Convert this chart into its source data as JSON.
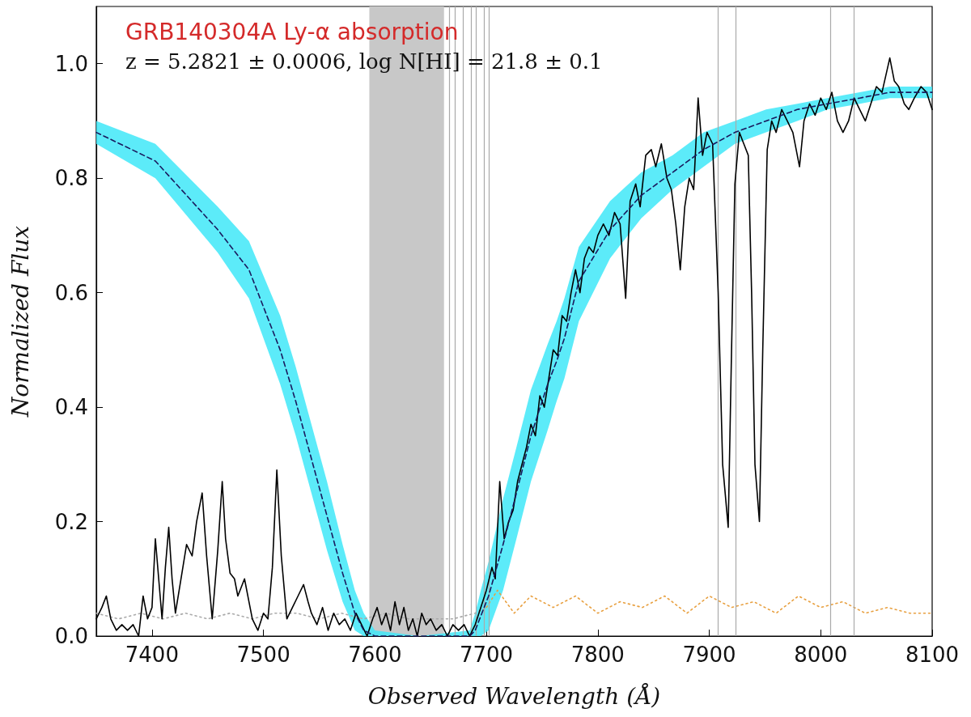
{
  "chart_data": {
    "type": "line",
    "title": "GRB140304A Ly-α absorption",
    "subtitle": "z = 5.2821 ± 0.0006, log N[HI] = 21.8 ± 0.1",
    "xlabel": "Observed Wavelength (Å)",
    "ylabel": "Normalized Flux",
    "xlim": [
      7350,
      8100
    ],
    "xticks": [
      7400,
      7500,
      7600,
      7700,
      7800,
      7900,
      8000,
      8100
    ],
    "ylim": [
      0,
      1.1
    ],
    "yticks": [
      {
        "value": 0,
        "label": "0.0"
      },
      0.2,
      0.4,
      0.6,
      0.8,
      {
        "value": 1,
        "label": "1.0"
      }
    ],
    "grid": false,
    "marker": "none",
    "bands": [
      {
        "axis": "x",
        "from": 7595,
        "to": 7662,
        "color": "#c8c8c8"
      }
    ],
    "ref_lines": [
      {
        "axis": "x",
        "value": 7667,
        "color": "#aaaaaa"
      },
      {
        "axis": "x",
        "value": 7672,
        "color": "#aaaaaa"
      },
      {
        "axis": "x",
        "value": 7679,
        "color": "#aaaaaa"
      },
      {
        "axis": "x",
        "value": 7686,
        "color": "#aaaaaa"
      },
      {
        "axis": "x",
        "value": 7691,
        "color": "#aaaaaa"
      },
      {
        "axis": "x",
        "value": 7698,
        "color": "#aaaaaa"
      },
      {
        "axis": "x",
        "value": 7702,
        "color": "#aaaaaa"
      },
      {
        "axis": "x",
        "value": 7908,
        "color": "#aaaaaa"
      },
      {
        "axis": "x",
        "value": 7924,
        "color": "#aaaaaa"
      },
      {
        "axis": "x",
        "value": 8009,
        "color": "#aaaaaa"
      },
      {
        "axis": "x",
        "value": 8030,
        "color": "#aaaaaa"
      }
    ],
    "series": [
      {
        "color": "#aaaaaa",
        "line_style": "dotted",
        "x": [
          7350,
          7370,
          7390,
          7410,
          7430,
          7450,
          7470,
          7490,
          7510,
          7530,
          7550,
          7570,
          7590,
          7610,
          7630,
          7650,
          7670,
          7690,
          7700
        ],
        "values": [
          0.04,
          0.03,
          0.04,
          0.03,
          0.04,
          0.03,
          0.04,
          0.03,
          0.04,
          0.04,
          0.03,
          0.04,
          0.03,
          0.04,
          0.03,
          0.03,
          0.03,
          0.04,
          0.05
        ]
      },
      {
        "color": "#e8a040",
        "line_style": "dotted",
        "x": [
          7700,
          7710,
          7725,
          7740,
          7760,
          7780,
          7800,
          7820,
          7840,
          7860,
          7880,
          7900,
          7920,
          7940,
          7960,
          7980,
          8000,
          8020,
          8040,
          8060,
          8080,
          8100
        ],
        "values": [
          0.05,
          0.08,
          0.04,
          0.07,
          0.05,
          0.07,
          0.04,
          0.06,
          0.05,
          0.07,
          0.04,
          0.07,
          0.05,
          0.06,
          0.04,
          0.07,
          0.05,
          0.06,
          0.04,
          0.05,
          0.04,
          0.04
        ]
      },
      {
        "color": "#000000",
        "line_style": "solid",
        "x": [
          7350,
          7355,
          7359,
          7363,
          7368,
          7373,
          7378,
          7383,
          7388,
          7392,
          7396,
          7400,
          7403,
          7406,
          7409,
          7412,
          7415,
          7418,
          7421,
          7426,
          7431,
          7436,
          7440,
          7445,
          7449,
          7454,
          7459,
          7463,
          7466,
          7470,
          7474,
          7477,
          7483,
          7487,
          7490,
          7495,
          7500,
          7504,
          7508,
          7512,
          7516,
          7521,
          7526,
          7531,
          7536,
          7540,
          7543,
          7548,
          7553,
          7558,
          7563,
          7568,
          7573,
          7578,
          7583,
          7588,
          7593,
          7598,
          7602,
          7606,
          7610,
          7614,
          7618,
          7622,
          7626,
          7630,
          7634,
          7638,
          7642,
          7646,
          7650,
          7655,
          7660,
          7665,
          7670,
          7675,
          7680,
          7685,
          7690,
          7695,
          7700,
          7705,
          7708,
          7712,
          7716,
          7720,
          7724,
          7728,
          7732,
          7736,
          7740,
          7744,
          7748,
          7752,
          7756,
          7760,
          7764,
          7768,
          7772,
          7776,
          7780,
          7784,
          7788,
          7792,
          7796,
          7800,
          7805,
          7810,
          7815,
          7820,
          7825,
          7829,
          7834,
          7838,
          7843,
          7848,
          7852,
          7857,
          7862,
          7866,
          7870,
          7874,
          7878,
          7882,
          7886,
          7890,
          7894,
          7898,
          7903,
          7908,
          7912,
          7917,
          7920,
          7923,
          7927,
          7931,
          7935,
          7938,
          7941,
          7945,
          7948,
          7952,
          7956,
          7960,
          7965,
          7970,
          7975,
          7981,
          7985,
          7990,
          7995,
          8000,
          8005,
          8010,
          8015,
          8020,
          8025,
          8030,
          8035,
          8040,
          8045,
          8050,
          8055,
          8062,
          8066,
          8070,
          8075,
          8079,
          8084,
          8090,
          8095,
          8100
        ],
        "values": [
          0.03,
          0.05,
          0.07,
          0.03,
          0.01,
          0.02,
          0.01,
          0.02,
          0.0,
          0.07,
          0.03,
          0.05,
          0.17,
          0.1,
          0.03,
          0.12,
          0.19,
          0.1,
          0.04,
          0.1,
          0.16,
          0.14,
          0.2,
          0.25,
          0.14,
          0.03,
          0.15,
          0.27,
          0.17,
          0.11,
          0.1,
          0.07,
          0.1,
          0.06,
          0.03,
          0.01,
          0.04,
          0.03,
          0.12,
          0.29,
          0.14,
          0.03,
          0.05,
          0.07,
          0.09,
          0.06,
          0.04,
          0.02,
          0.05,
          0.01,
          0.04,
          0.02,
          0.03,
          0.01,
          0.04,
          0.02,
          0.0,
          0.03,
          0.05,
          0.02,
          0.04,
          0.01,
          0.06,
          0.02,
          0.05,
          0.01,
          0.03,
          0.0,
          0.04,
          0.02,
          0.03,
          0.01,
          0.02,
          0.0,
          0.02,
          0.01,
          0.02,
          0.0,
          0.02,
          0.05,
          0.08,
          0.12,
          0.1,
          0.27,
          0.17,
          0.2,
          0.22,
          0.27,
          0.3,
          0.33,
          0.37,
          0.35,
          0.42,
          0.4,
          0.45,
          0.5,
          0.49,
          0.56,
          0.55,
          0.6,
          0.64,
          0.6,
          0.66,
          0.68,
          0.67,
          0.7,
          0.72,
          0.7,
          0.74,
          0.72,
          0.59,
          0.76,
          0.79,
          0.75,
          0.84,
          0.85,
          0.82,
          0.86,
          0.8,
          0.78,
          0.72,
          0.64,
          0.75,
          0.8,
          0.78,
          0.94,
          0.84,
          0.88,
          0.86,
          0.6,
          0.3,
          0.19,
          0.5,
          0.79,
          0.88,
          0.86,
          0.84,
          0.6,
          0.3,
          0.2,
          0.5,
          0.85,
          0.9,
          0.88,
          0.92,
          0.9,
          0.88,
          0.82,
          0.9,
          0.93,
          0.91,
          0.94,
          0.92,
          0.95,
          0.9,
          0.88,
          0.9,
          0.94,
          0.92,
          0.9,
          0.93,
          0.96,
          0.95,
          1.01,
          0.97,
          0.96,
          0.93,
          0.92,
          0.94,
          0.96,
          0.95,
          0.92
        ]
      },
      {
        "color": "#1a1a5e",
        "line_style": "dashed",
        "x": [
          7350,
          7403,
          7459,
          7487,
          7515,
          7529,
          7543,
          7557,
          7571,
          7582,
          7590,
          7600,
          7640,
          7685,
          7690,
          7695,
          7702,
          7715,
          7727,
          7740,
          7755,
          7763,
          7770,
          7783,
          7811,
          7839,
          7867,
          7895,
          7923,
          7951,
          7979,
          8006,
          8035,
          8062,
          8100
        ],
        "values": [
          0.88,
          0.83,
          0.71,
          0.64,
          0.5,
          0.41,
          0.31,
          0.21,
          0.11,
          0.04,
          0.01,
          0.0,
          0.0,
          0.0,
          0.01,
          0.035,
          0.07,
          0.16,
          0.25,
          0.35,
          0.44,
          0.48,
          0.52,
          0.62,
          0.71,
          0.77,
          0.81,
          0.85,
          0.88,
          0.9,
          0.92,
          0.93,
          0.94,
          0.95,
          0.95
        ],
        "lower": [
          0.86,
          0.8,
          0.67,
          0.59,
          0.44,
          0.35,
          0.25,
          0.15,
          0.06,
          0.01,
          0.0,
          0.0,
          0.0,
          0.0,
          0.0,
          0.0,
          0.01,
          0.08,
          0.17,
          0.27,
          0.36,
          0.41,
          0.45,
          0.55,
          0.66,
          0.73,
          0.78,
          0.82,
          0.86,
          0.88,
          0.9,
          0.92,
          0.93,
          0.94,
          0.94
        ],
        "upper": [
          0.9,
          0.86,
          0.75,
          0.69,
          0.56,
          0.47,
          0.37,
          0.27,
          0.16,
          0.08,
          0.04,
          0.01,
          0.0,
          0.01,
          0.04,
          0.08,
          0.13,
          0.24,
          0.33,
          0.43,
          0.51,
          0.55,
          0.59,
          0.68,
          0.76,
          0.81,
          0.84,
          0.88,
          0.9,
          0.92,
          0.93,
          0.94,
          0.95,
          0.96,
          0.96
        ]
      }
    ]
  }
}
